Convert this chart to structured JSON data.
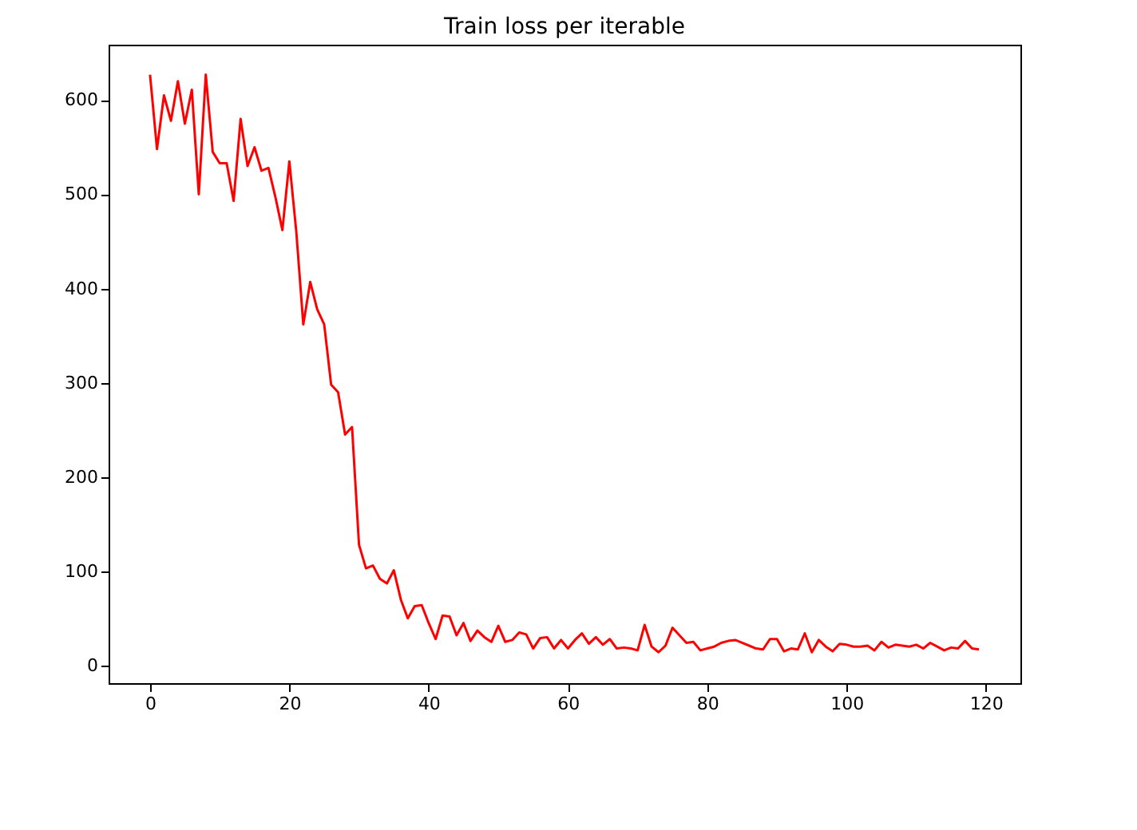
{
  "chart_data": {
    "type": "line",
    "title": "Train loss per iterable",
    "x": [
      0,
      1,
      2,
      3,
      4,
      5,
      6,
      7,
      8,
      9,
      10,
      11,
      12,
      13,
      14,
      15,
      16,
      17,
      18,
      19,
      20,
      21,
      22,
      23,
      24,
      25,
      26,
      27,
      28,
      29,
      30,
      31,
      32,
      33,
      34,
      35,
      36,
      37,
      38,
      39,
      40,
      41,
      42,
      43,
      44,
      45,
      46,
      47,
      48,
      49,
      50,
      51,
      52,
      53,
      54,
      55,
      56,
      57,
      58,
      59,
      60,
      61,
      62,
      63,
      64,
      65,
      66,
      67,
      68,
      69,
      70,
      71,
      72,
      73,
      74,
      75,
      76,
      77,
      78,
      79,
      80,
      81,
      82,
      83,
      84,
      85,
      86,
      87,
      88,
      89,
      90,
      91,
      92,
      93,
      94,
      95,
      96,
      97,
      98,
      99,
      100,
      101,
      102,
      103,
      104,
      105,
      106,
      107,
      108,
      109,
      110,
      111,
      112,
      113,
      114,
      115,
      116,
      117,
      118,
      119
    ],
    "series": [
      {
        "color": "#ff0000",
        "values": [
          627,
          548,
          605,
          578,
          620,
          575,
          611,
          500,
          627,
          545,
          533,
          533,
          493,
          580,
          530,
          550,
          525,
          528,
          497,
          462,
          535,
          460,
          362,
          407,
          378,
          362,
          298,
          290,
          245,
          253,
          128,
          103,
          106,
          92,
          87,
          101,
          70,
          50,
          63,
          64,
          45,
          28,
          53,
          52,
          32,
          45,
          26,
          37,
          30,
          25,
          42,
          25,
          27,
          35,
          33,
          18,
          29,
          30,
          18,
          27,
          18,
          27,
          34,
          23,
          30,
          22,
          28,
          18,
          19,
          18,
          16,
          43,
          20,
          14,
          21,
          40,
          32,
          24,
          25,
          16,
          18,
          20,
          24,
          26,
          27,
          24,
          21,
          18,
          17,
          28,
          28,
          15,
          18,
          17,
          34,
          14,
          27,
          20,
          15,
          23,
          22,
          20,
          20,
          21,
          16,
          25,
          19,
          22,
          21,
          20,
          22,
          18,
          24,
          20,
          16,
          19,
          18,
          26,
          18,
          17
        ]
      }
    ],
    "xlim": [
      -5.95,
      124.95
    ],
    "ylim": [
      -18.8,
      658.8
    ],
    "xticks": [
      0,
      20,
      40,
      60,
      80,
      100,
      120
    ],
    "yticks": [
      0,
      100,
      200,
      300,
      400,
      500,
      600
    ],
    "grid": false,
    "marker": "none",
    "line_style": "solid"
  }
}
